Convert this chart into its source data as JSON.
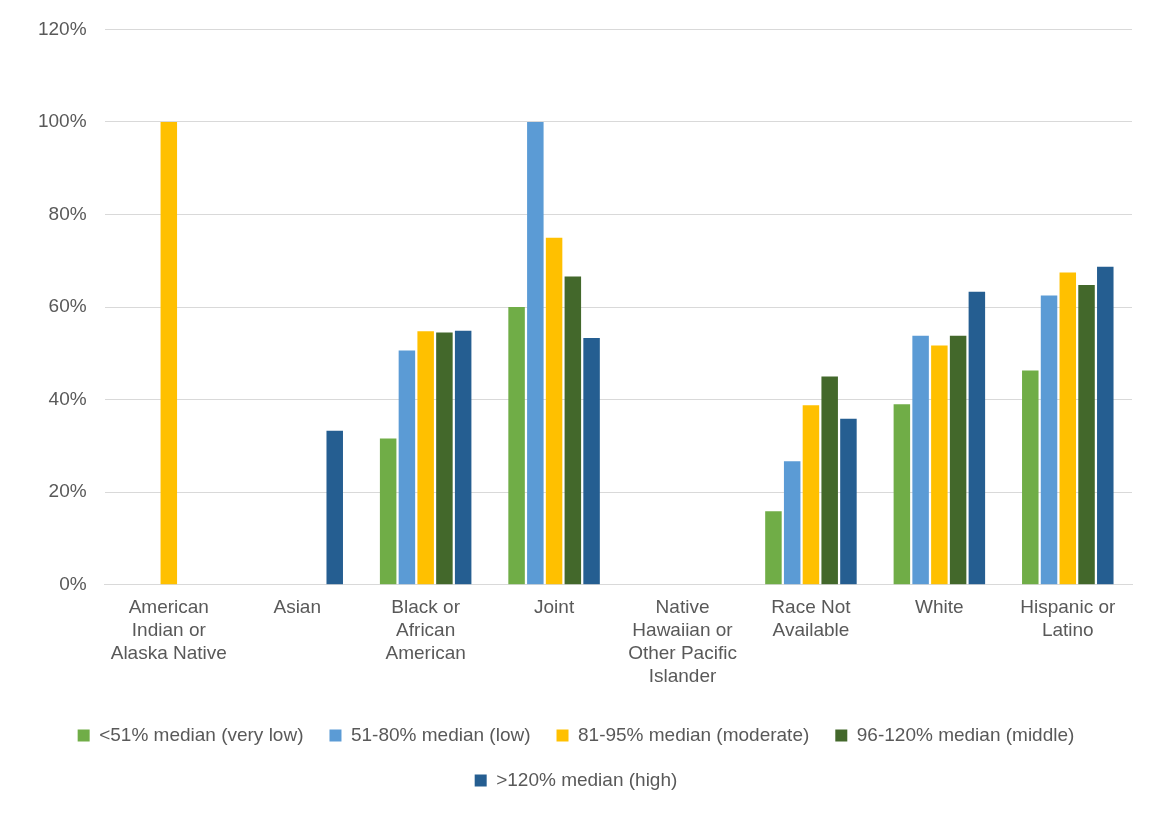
{
  "chart_data": {
    "type": "bar",
    "categories": [
      "American Indian or Alaska Native",
      "Asian",
      "Black or African American",
      "Joint",
      "Native Hawaiian or Other Pacific Islander",
      "Race Not Available",
      "White",
      "Hispanic or Latino"
    ],
    "series": [
      {
        "name": "<51% median (very low)",
        "color": "#70ad47",
        "values": [
          null,
          null,
          31.6,
          60,
          null,
          15.9,
          39,
          46.3
        ]
      },
      {
        "name": "51-80% median (low)",
        "color": "#5b9bd5",
        "values": [
          null,
          null,
          50.6,
          100,
          null,
          26.7,
          53.8,
          62.5
        ]
      },
      {
        "name": "81-95% median (moderate)",
        "color": "#ffc000",
        "values": [
          100,
          null,
          54.8,
          75,
          null,
          38.8,
          51.7,
          67.5
        ]
      },
      {
        "name": "96-120% median (middle)",
        "color": "#43682b",
        "values": [
          null,
          null,
          54.5,
          66.6,
          null,
          45,
          53.8,
          64.8
        ]
      },
      {
        "name": ">120% median (high)",
        "color": "#255e91",
        "values": [
          null,
          33.3,
          54.9,
          53.3,
          null,
          35.9,
          63.3,
          68.7
        ]
      }
    ],
    "ylim": [
      0,
      120
    ],
    "yticks": [
      {
        "value": 0,
        "label": "0%"
      },
      {
        "value": 20,
        "label": "20%"
      },
      {
        "value": 40,
        "label": "40%"
      },
      {
        "value": 60,
        "label": "60%"
      },
      {
        "value": 80,
        "label": "80%"
      },
      {
        "value": 100,
        "label": "100%"
      },
      {
        "value": 120,
        "label": "120%"
      }
    ],
    "grid": "y",
    "legend": "bottom"
  }
}
